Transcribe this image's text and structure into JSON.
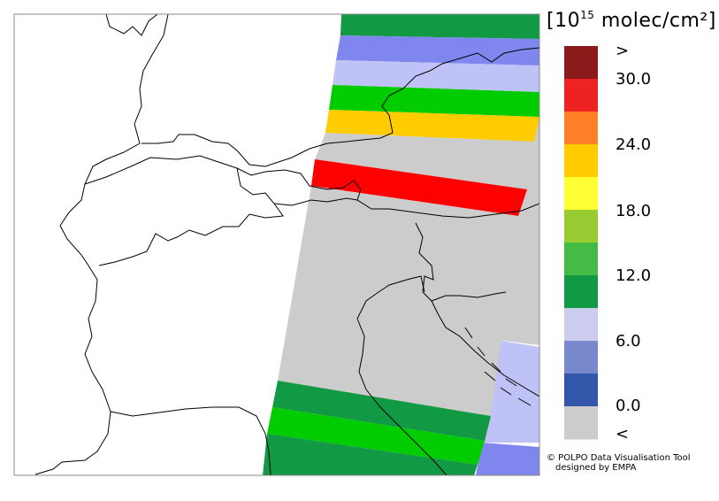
{
  "legend": {
    "unit_prefix": "[10",
    "unit_exponent": "15",
    "unit_suffix": " molec/cm²]",
    "bins": [
      {
        "color": "#8b1a1a"
      },
      {
        "color": "#ee2222"
      },
      {
        "color": "#ff7f27"
      },
      {
        "color": "#ffcc00"
      },
      {
        "color": "#ffff33"
      },
      {
        "color": "#99cc33"
      },
      {
        "color": "#44bb44"
      },
      {
        "color": "#119944"
      },
      {
        "color": "#ccccee"
      },
      {
        "color": "#7788cc"
      },
      {
        "color": "#3355aa"
      },
      {
        "color": "#cccccc"
      }
    ],
    "tick_labels": [
      ">",
      "30.0",
      "24.0",
      "18.0",
      "12.0",
      "6.0",
      "0.0",
      "<"
    ]
  },
  "swath_bands": [
    {
      "name": "band-1",
      "color": "#119944"
    },
    {
      "name": "band-2",
      "color": "#7f86ee"
    },
    {
      "name": "band-3",
      "color": "#bfc2f6"
    },
    {
      "name": "band-4",
      "color": "#00cc00"
    },
    {
      "name": "band-5",
      "color": "#ffcc00"
    },
    {
      "name": "band-6",
      "color": "#cccccc"
    },
    {
      "name": "band-7",
      "color": "#ff0000"
    },
    {
      "name": "band-8",
      "color": "#cccccc"
    },
    {
      "name": "band-9",
      "color": "#119944"
    },
    {
      "name": "band-10",
      "color": "#00cc00"
    },
    {
      "name": "band-11",
      "color": "#119944"
    }
  ],
  "credit": {
    "line1": "© POLPO Data Visualisation Tool",
    "line2": "designed by EMPA"
  }
}
